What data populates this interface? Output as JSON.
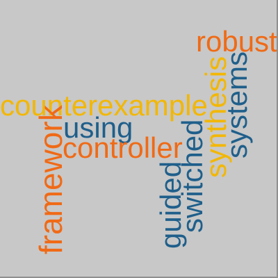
{
  "colors": {
    "background": "#c8c8c8",
    "blue": "#1f5f8b",
    "orange": "#f06a16",
    "yellow": "#f2b705"
  },
  "words": {
    "counterexample": {
      "text": "counterexample",
      "color": "#f2b705"
    },
    "using": {
      "text": "using",
      "color": "#1f5f8b"
    },
    "controller": {
      "text": "controller",
      "color": "#f06a16"
    },
    "robust": {
      "text": "robust",
      "color": "#f06a16"
    },
    "framework": {
      "text": "framework",
      "color": "#f06a16"
    },
    "guided": {
      "text": "guided",
      "color": "#1f5f8b"
    },
    "switched": {
      "text": "switched",
      "color": "#1f5f8b"
    },
    "synthesis": {
      "text": "synthesis",
      "color": "#f2b705"
    },
    "systems": {
      "text": "systems",
      "color": "#1f5f8b"
    }
  }
}
